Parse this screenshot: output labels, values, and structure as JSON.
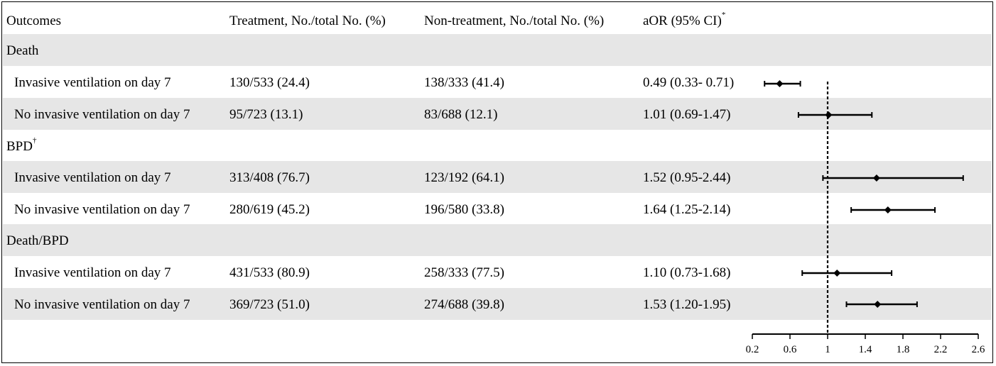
{
  "table": {
    "headers": {
      "outcomes": "Outcomes",
      "treatment": "Treatment, No./total No. (%)",
      "non_treatment": "Non-treatment, No./total No. (%)",
      "aor": "aOR (95% CI)",
      "aor_mark": "*"
    },
    "groups": [
      {
        "name": "Death",
        "mark": ""
      },
      {
        "name": "BPD",
        "mark": "†"
      },
      {
        "name": "Death/BPD",
        "mark": ""
      }
    ],
    "rows": [
      {
        "label": "Invasive ventilation on day 7",
        "treatment": "130/533 (24.4)",
        "non_treatment": "138/333 (41.4)",
        "aor": "0.49 (0.33- 0.71)"
      },
      {
        "label": "No invasive ventilation on day 7",
        "treatment": "95/723 (13.1)",
        "non_treatment": "83/688 (12.1)",
        "aor": "1.01 (0.69-1.47)"
      },
      {
        "label": "Invasive ventilation on day 7",
        "treatment": "313/408 (76.7)",
        "non_treatment": "123/192 (64.1)",
        "aor": "1.52 (0.95-2.44)"
      },
      {
        "label": "No invasive ventilation on day 7",
        "treatment": "280/619 (45.2)",
        "non_treatment": "196/580 (33.8)",
        "aor": "1.64 (1.25-2.14)"
      },
      {
        "label": "Invasive ventilation on day 7",
        "treatment": "431/533 (80.9)",
        "non_treatment": "258/333 (77.5)",
        "aor": "1.10 (0.73-1.68)"
      },
      {
        "label": "No invasive ventilation on day 7",
        "treatment": "369/723 (51.0)",
        "non_treatment": "274/688 (39.8)",
        "aor": "1.53 (1.20-1.95)"
      }
    ]
  },
  "chart_data": {
    "type": "forest",
    "xlim": [
      0.2,
      2.6
    ],
    "reference_line": 1,
    "ticks": [
      "0.2",
      "0.6",
      "1",
      "1.4",
      "1.8",
      "2.2",
      "2.6"
    ],
    "points": [
      {
        "or": 0.49,
        "lo": 0.33,
        "hi": 0.71
      },
      {
        "or": 1.01,
        "lo": 0.69,
        "hi": 1.47
      },
      {
        "or": 1.52,
        "lo": 0.95,
        "hi": 2.44
      },
      {
        "or": 1.64,
        "lo": 1.25,
        "hi": 2.14
      },
      {
        "or": 1.1,
        "lo": 0.73,
        "hi": 1.68
      },
      {
        "or": 1.53,
        "lo": 1.2,
        "hi": 1.95
      }
    ]
  }
}
